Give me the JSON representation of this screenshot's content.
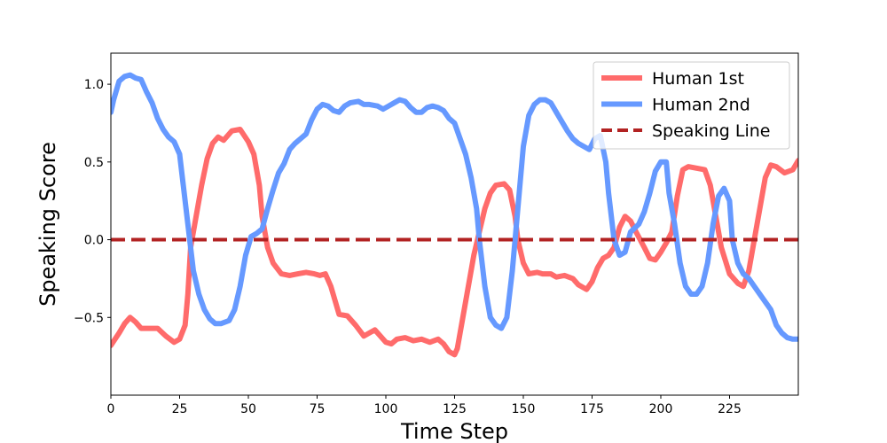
{
  "chart_data": {
    "type": "line",
    "xlabel": "Time Step",
    "ylabel": "Speaking Score",
    "xlim": [
      0,
      250
    ],
    "ylim": [
      -1.0,
      1.2
    ],
    "x_ticks": [
      "0",
      "25",
      "50",
      "75",
      "100",
      "125",
      "150",
      "175",
      "200",
      "225"
    ],
    "y_ticks": [
      "−0.5",
      "0.0",
      "0.5",
      "1.0"
    ],
    "y_tick_values": [
      -0.5,
      0.0,
      0.5,
      1.0
    ],
    "x_tick_values": [
      0,
      25,
      50,
      75,
      100,
      125,
      150,
      175,
      200,
      225
    ],
    "grid": false,
    "legend_position": "top-right",
    "series": [
      {
        "name": "Human 1st",
        "color": "#ff6b6b",
        "style": "solid",
        "points": [
          [
            0,
            -0.68
          ],
          [
            3,
            -0.6
          ],
          [
            5,
            -0.54
          ],
          [
            7,
            -0.5
          ],
          [
            9,
            -0.53
          ],
          [
            11,
            -0.57
          ],
          [
            15,
            -0.57
          ],
          [
            17,
            -0.57
          ],
          [
            20,
            -0.62
          ],
          [
            23,
            -0.66
          ],
          [
            25,
            -0.64
          ],
          [
            27,
            -0.55
          ],
          [
            28,
            -0.35
          ],
          [
            29,
            -0.05
          ],
          [
            31,
            0.15
          ],
          [
            33,
            0.35
          ],
          [
            35,
            0.52
          ],
          [
            37,
            0.62
          ],
          [
            39,
            0.66
          ],
          [
            41,
            0.64
          ],
          [
            44,
            0.7
          ],
          [
            47,
            0.71
          ],
          [
            50,
            0.63
          ],
          [
            52,
            0.55
          ],
          [
            54,
            0.35
          ],
          [
            55,
            0.15
          ],
          [
            57,
            -0.05
          ],
          [
            59,
            -0.15
          ],
          [
            62,
            -0.22
          ],
          [
            65,
            -0.23
          ],
          [
            68,
            -0.22
          ],
          [
            71,
            -0.21
          ],
          [
            74,
            -0.22
          ],
          [
            76,
            -0.23
          ],
          [
            78,
            -0.22
          ],
          [
            80,
            -0.3
          ],
          [
            83,
            -0.48
          ],
          [
            86,
            -0.49
          ],
          [
            89,
            -0.55
          ],
          [
            92,
            -0.62
          ],
          [
            94,
            -0.6
          ],
          [
            96,
            -0.58
          ],
          [
            98,
            -0.62
          ],
          [
            100,
            -0.66
          ],
          [
            102,
            -0.67
          ],
          [
            104,
            -0.64
          ],
          [
            107,
            -0.63
          ],
          [
            110,
            -0.65
          ],
          [
            113,
            -0.64
          ],
          [
            116,
            -0.66
          ],
          [
            119,
            -0.64
          ],
          [
            121,
            -0.67
          ],
          [
            123,
            -0.72
          ],
          [
            125,
            -0.74
          ],
          [
            126,
            -0.7
          ],
          [
            128,
            -0.5
          ],
          [
            130,
            -0.3
          ],
          [
            132,
            -0.1
          ],
          [
            134,
            0.05
          ],
          [
            136,
            0.2
          ],
          [
            138,
            0.3
          ],
          [
            140,
            0.35
          ],
          [
            143,
            0.36
          ],
          [
            145,
            0.32
          ],
          [
            147,
            0.15
          ],
          [
            148,
            0.0
          ],
          [
            150,
            -0.15
          ],
          [
            152,
            -0.22
          ],
          [
            155,
            -0.21
          ],
          [
            157,
            -0.22
          ],
          [
            160,
            -0.22
          ],
          [
            162,
            -0.24
          ],
          [
            165,
            -0.23
          ],
          [
            168,
            -0.25
          ],
          [
            170,
            -0.29
          ],
          [
            173,
            -0.32
          ],
          [
            175,
            -0.27
          ],
          [
            177,
            -0.18
          ],
          [
            179,
            -0.12
          ],
          [
            181,
            -0.1
          ],
          [
            183,
            -0.05
          ],
          [
            185,
            0.08
          ],
          [
            187,
            0.15
          ],
          [
            189,
            0.12
          ],
          [
            191,
            0.05
          ],
          [
            194,
            -0.05
          ],
          [
            196,
            -0.12
          ],
          [
            198,
            -0.13
          ],
          [
            200,
            -0.08
          ],
          [
            202,
            -0.02
          ],
          [
            204,
            0.05
          ],
          [
            206,
            0.28
          ],
          [
            208,
            0.45
          ],
          [
            210,
            0.47
          ],
          [
            213,
            0.46
          ],
          [
            216,
            0.45
          ],
          [
            218,
            0.35
          ],
          [
            220,
            0.15
          ],
          [
            222,
            -0.05
          ],
          [
            225,
            -0.22
          ],
          [
            228,
            -0.28
          ],
          [
            230,
            -0.3
          ],
          [
            232,
            -0.2
          ],
          [
            234,
            0.0
          ],
          [
            236,
            0.2
          ],
          [
            238,
            0.4
          ],
          [
            240,
            0.48
          ],
          [
            242,
            0.47
          ],
          [
            245,
            0.43
          ],
          [
            248,
            0.45
          ],
          [
            250,
            0.51
          ]
        ]
      },
      {
        "name": "Human 2nd",
        "color": "#6699ff",
        "style": "solid",
        "points": [
          [
            0,
            0.82
          ],
          [
            1,
            0.9
          ],
          [
            3,
            1.02
          ],
          [
            5,
            1.05
          ],
          [
            7,
            1.06
          ],
          [
            9,
            1.04
          ],
          [
            11,
            1.03
          ],
          [
            13,
            0.95
          ],
          [
            15,
            0.88
          ],
          [
            17,
            0.78
          ],
          [
            19,
            0.71
          ],
          [
            21,
            0.66
          ],
          [
            23,
            0.63
          ],
          [
            25,
            0.55
          ],
          [
            26,
            0.4
          ],
          [
            28,
            0.1
          ],
          [
            30,
            -0.2
          ],
          [
            32,
            -0.35
          ],
          [
            34,
            -0.45
          ],
          [
            36,
            -0.51
          ],
          [
            38,
            -0.54
          ],
          [
            40,
            -0.54
          ],
          [
            43,
            -0.52
          ],
          [
            45,
            -0.45
          ],
          [
            47,
            -0.3
          ],
          [
            49,
            -0.1
          ],
          [
            51,
            0.02
          ],
          [
            53,
            0.04
          ],
          [
            55,
            0.07
          ],
          [
            57,
            0.2
          ],
          [
            59,
            0.32
          ],
          [
            61,
            0.43
          ],
          [
            63,
            0.49
          ],
          [
            65,
            0.58
          ],
          [
            67,
            0.62
          ],
          [
            69,
            0.65
          ],
          [
            71,
            0.68
          ],
          [
            73,
            0.77
          ],
          [
            75,
            0.84
          ],
          [
            77,
            0.87
          ],
          [
            79,
            0.86
          ],
          [
            81,
            0.83
          ],
          [
            83,
            0.82
          ],
          [
            85,
            0.86
          ],
          [
            87,
            0.88
          ],
          [
            90,
            0.89
          ],
          [
            92,
            0.87
          ],
          [
            94,
            0.87
          ],
          [
            97,
            0.86
          ],
          [
            99,
            0.84
          ],
          [
            101,
            0.86
          ],
          [
            103,
            0.88
          ],
          [
            105,
            0.9
          ],
          [
            107,
            0.89
          ],
          [
            109,
            0.85
          ],
          [
            111,
            0.82
          ],
          [
            113,
            0.82
          ],
          [
            115,
            0.85
          ],
          [
            117,
            0.86
          ],
          [
            119,
            0.85
          ],
          [
            121,
            0.83
          ],
          [
            123,
            0.78
          ],
          [
            125,
            0.75
          ],
          [
            127,
            0.65
          ],
          [
            129,
            0.55
          ],
          [
            131,
            0.4
          ],
          [
            133,
            0.2
          ],
          [
            134,
            0.0
          ],
          [
            136,
            -0.3
          ],
          [
            138,
            -0.5
          ],
          [
            140,
            -0.55
          ],
          [
            142,
            -0.57
          ],
          [
            144,
            -0.5
          ],
          [
            146,
            -0.2
          ],
          [
            148,
            0.2
          ],
          [
            150,
            0.6
          ],
          [
            152,
            0.8
          ],
          [
            154,
            0.87
          ],
          [
            156,
            0.9
          ],
          [
            158,
            0.9
          ],
          [
            160,
            0.88
          ],
          [
            162,
            0.82
          ],
          [
            164,
            0.76
          ],
          [
            166,
            0.7
          ],
          [
            168,
            0.65
          ],
          [
            170,
            0.62
          ],
          [
            172,
            0.6
          ],
          [
            174,
            0.58
          ],
          [
            176,
            0.65
          ],
          [
            178,
            0.67
          ],
          [
            180,
            0.5
          ],
          [
            181,
            0.3
          ],
          [
            183,
            0.0
          ],
          [
            185,
            -0.1
          ],
          [
            187,
            -0.08
          ],
          [
            189,
            0.05
          ],
          [
            192,
            0.1
          ],
          [
            194,
            0.18
          ],
          [
            196,
            0.3
          ],
          [
            198,
            0.44
          ],
          [
            200,
            0.5
          ],
          [
            202,
            0.5
          ],
          [
            203,
            0.3
          ],
          [
            205,
            0.1
          ],
          [
            207,
            -0.15
          ],
          [
            209,
            -0.3
          ],
          [
            211,
            -0.35
          ],
          [
            213,
            -0.35
          ],
          [
            215,
            -0.3
          ],
          [
            217,
            -0.15
          ],
          [
            219,
            0.1
          ],
          [
            221,
            0.28
          ],
          [
            223,
            0.33
          ],
          [
            225,
            0.25
          ],
          [
            226,
            0.0
          ],
          [
            228,
            -0.15
          ],
          [
            230,
            -0.22
          ],
          [
            232,
            -0.25
          ],
          [
            234,
            -0.3
          ],
          [
            236,
            -0.35
          ],
          [
            238,
            -0.4
          ],
          [
            240,
            -0.45
          ],
          [
            242,
            -0.55
          ],
          [
            244,
            -0.6
          ],
          [
            246,
            -0.63
          ],
          [
            248,
            -0.64
          ],
          [
            250,
            -0.64
          ]
        ]
      },
      {
        "name": "Speaking Line",
        "color": "#b22222",
        "style": "dashed",
        "points": [
          [
            0,
            0.0
          ],
          [
            250,
            0.0
          ]
        ]
      }
    ]
  }
}
